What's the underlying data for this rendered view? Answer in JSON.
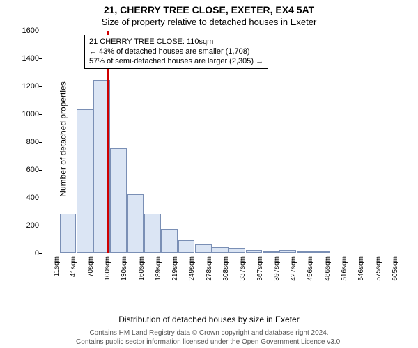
{
  "titles": {
    "main": "21, CHERRY TREE CLOSE, EXETER, EX4 5AT",
    "sub": "Size of property relative to detached houses in Exeter"
  },
  "axes": {
    "ylabel": "Number of detached properties",
    "xlabel": "Distribution of detached houses by size in Exeter",
    "ymax": 1600,
    "ytick_step": 200,
    "tick_fontsize": 11,
    "label_fontsize": 12
  },
  "chart": {
    "type": "histogram",
    "bar_fill": "#dbe5f4",
    "bar_stroke": "#7a8fb5",
    "background": "#ffffff",
    "categories": [
      "11sqm",
      "41sqm",
      "70sqm",
      "100sqm",
      "130sqm",
      "160sqm",
      "189sqm",
      "219sqm",
      "249sqm",
      "278sqm",
      "308sqm",
      "337sqm",
      "367sqm",
      "397sqm",
      "427sqm",
      "456sqm",
      "486sqm",
      "516sqm",
      "546sqm",
      "575sqm",
      "605sqm"
    ],
    "values": [
      0,
      280,
      1030,
      1240,
      750,
      420,
      280,
      170,
      90,
      60,
      40,
      30,
      20,
      10,
      20,
      10,
      5,
      0,
      0,
      0,
      0
    ]
  },
  "marker": {
    "color": "#d00000",
    "value_sqm": 110,
    "lines": {
      "l1": "21 CHERRY TREE CLOSE: 110sqm",
      "l2": "← 43% of detached houses are smaller (1,708)",
      "l3": "57% of semi-detached houses are larger (2,305) →"
    }
  },
  "footer": {
    "l1": "Contains HM Land Registry data © Crown copyright and database right 2024.",
    "l2": "Contains public sector information licensed under the Open Government Licence v3.0."
  }
}
